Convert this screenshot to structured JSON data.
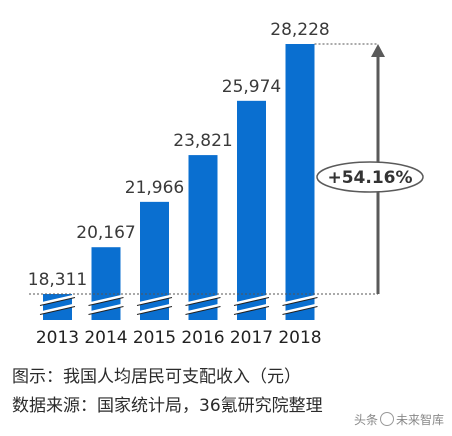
{
  "chart_data": {
    "type": "bar",
    "categories": [
      "2013",
      "2014",
      "2015",
      "2016",
      "2017",
      "2018"
    ],
    "values": [
      18311,
      20167,
      21966,
      23821,
      25974,
      28228
    ],
    "value_labels": [
      "18,311",
      "20,167",
      "21,966",
      "23,821",
      "25,974",
      "28,228"
    ],
    "growth_annotation": "+54.16%",
    "axis_break": true,
    "grid": false,
    "legend": "none"
  },
  "colors": {
    "bar": "#0a6fd0",
    "text": "#3a3a3a",
    "arrow": "#5a5a5a",
    "dotted_line": "#555555"
  },
  "captions": {
    "line1": "图示：我国人均居民可支配收入（元）",
    "line2": "数据来源：国家统计局，36氪研究院整理"
  },
  "watermark": {
    "prefix": "头条",
    "suffix": "未来智库",
    "icon": "at-sign-icon"
  }
}
